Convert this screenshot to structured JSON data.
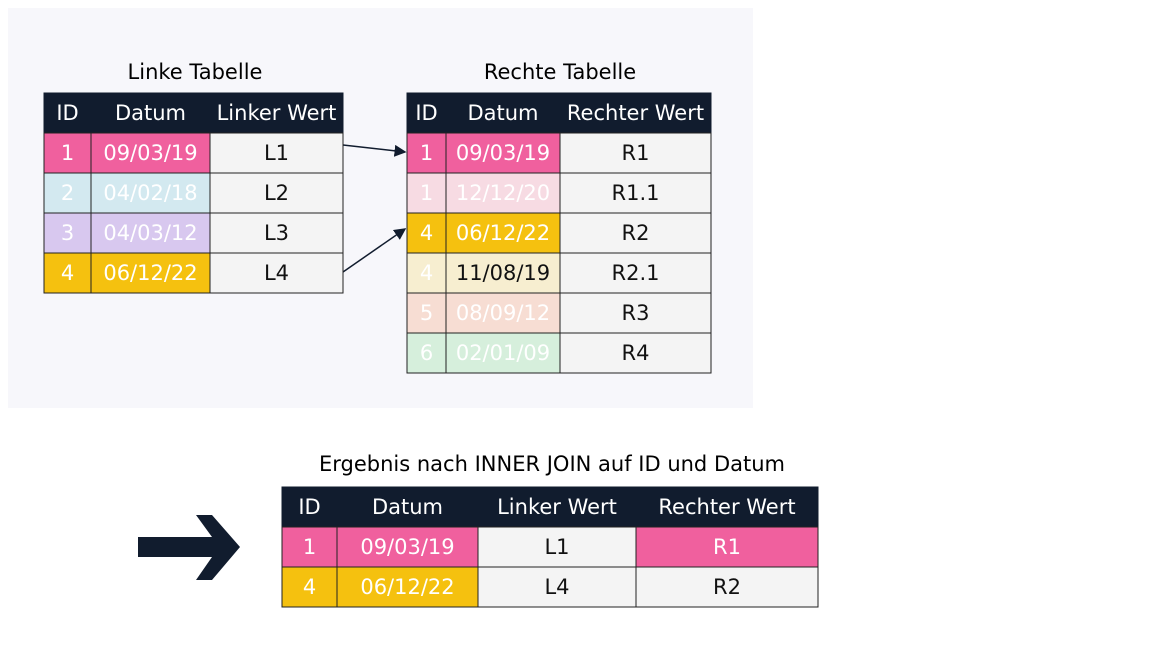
{
  "left_table": {
    "title": "Linke Tabelle",
    "headers": [
      "ID",
      "Datum",
      "Linker Wert"
    ],
    "rows": [
      [
        "1",
        "09/03/19",
        "L1"
      ],
      [
        "2",
        "04/02/18",
        "L2"
      ],
      [
        "3",
        "04/03/12",
        "L3"
      ],
      [
        "4",
        "06/12/22",
        "L4"
      ]
    ]
  },
  "right_table": {
    "title": "Rechte Tabelle",
    "headers": [
      "ID",
      "Datum",
      "Rechter Wert"
    ],
    "rows": [
      [
        "1",
        "09/03/19",
        "R1"
      ],
      [
        "1",
        "12/12/20",
        "R1.1"
      ],
      [
        "4",
        "06/12/22",
        "R2"
      ],
      [
        "4",
        "11/08/19",
        "R2.1"
      ],
      [
        "5",
        "08/09/12",
        "R3"
      ],
      [
        "6",
        "02/01/09",
        "R4"
      ]
    ]
  },
  "result_table": {
    "title": "Ergebnis nach INNER JOIN auf ID und Datum",
    "headers": [
      "ID",
      "Datum",
      "Linker Wert",
      "Rechter Wert"
    ],
    "rows": [
      [
        "1",
        "09/03/19",
        "L1",
        "R1"
      ],
      [
        "4",
        "06/12/22",
        "L4",
        "R2"
      ]
    ]
  }
}
